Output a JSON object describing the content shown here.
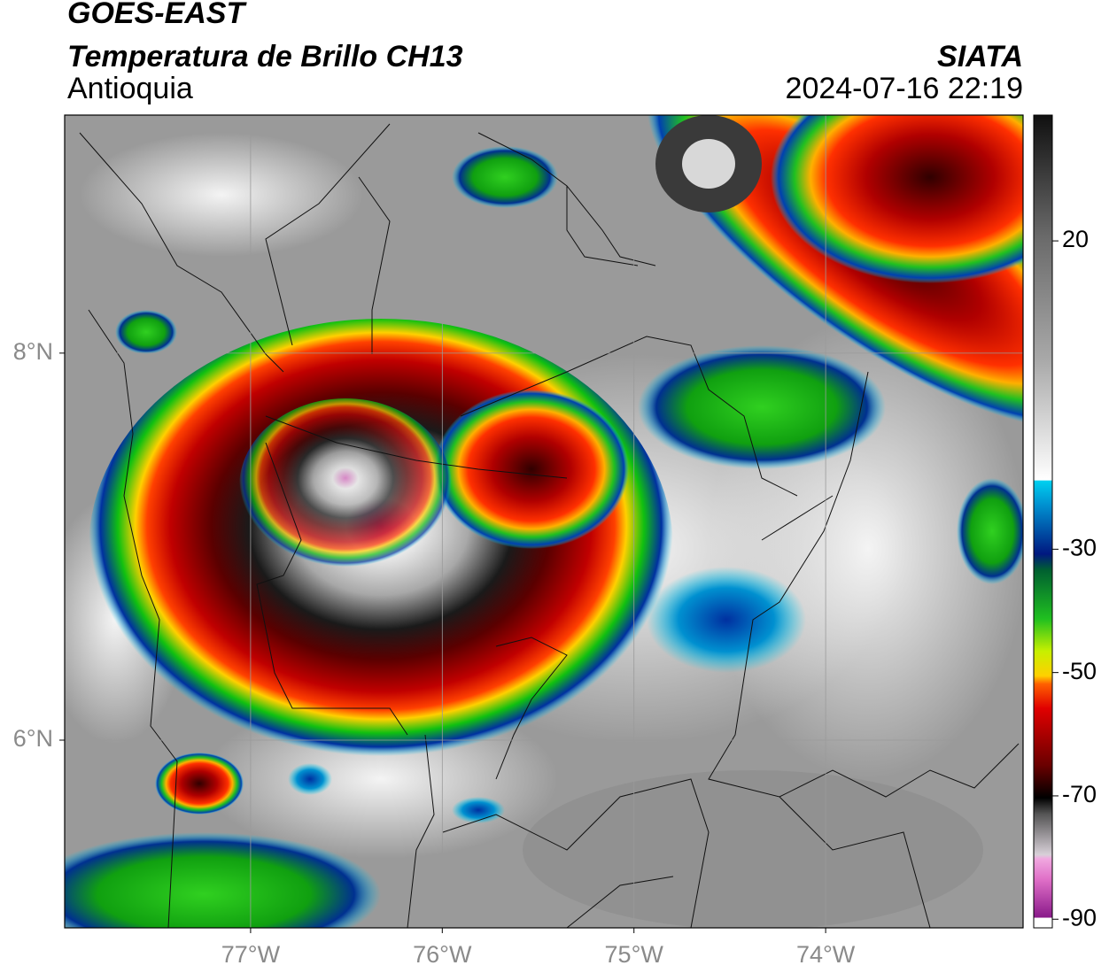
{
  "header": {
    "title": "GOES-EAST",
    "subtitle": "Temperatura de Brillo CH13",
    "region": "Antioquia",
    "source": "SIATA",
    "datetime": "2024-07-16 22:19"
  },
  "map": {
    "xlim": [
      -77.97,
      -72.97
    ],
    "ylim": [
      5.03,
      9.23
    ],
    "xticks": [
      {
        "value": -77,
        "label": "77°W"
      },
      {
        "value": -76,
        "label": "76°W"
      },
      {
        "value": -75,
        "label": "75°W"
      },
      {
        "value": -74,
        "label": "74°W"
      }
    ],
    "yticks": [
      {
        "value": 8,
        "label": "8°N"
      },
      {
        "value": 6,
        "label": "6°N"
      }
    ],
    "grid": true
  },
  "colorbar": {
    "lim": [
      -91.4,
      40.4
    ],
    "ticks": [
      20,
      -30,
      -50,
      -70,
      -90
    ]
  }
}
